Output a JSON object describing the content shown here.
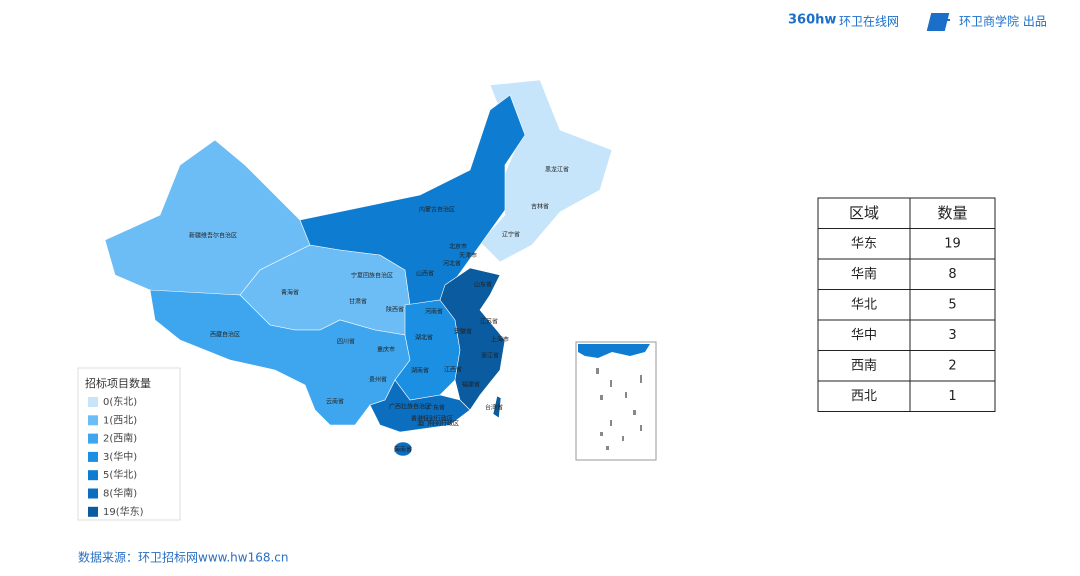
{
  "header": {
    "logo": "360hw",
    "site": "环卫在线网",
    "producer": "环卫商学院 出品"
  },
  "map": {
    "legend": {
      "title": "招标项目数量",
      "items": [
        {
          "label": "0(东北)",
          "color": "#c6e5fa"
        },
        {
          "label": "1(西北)",
          "color": "#6cbdf5"
        },
        {
          "label": "2(西南)",
          "color": "#3ea6ee"
        },
        {
          "label": "3(华中)",
          "color": "#1b8fe2"
        },
        {
          "label": "5(华北)",
          "color": "#0e7dd1"
        },
        {
          "label": "8(华南)",
          "color": "#0b6ebf"
        },
        {
          "label": "19(华东)",
          "color": "#0a5b9f"
        }
      ]
    },
    "provinces": [
      "黑龙江省",
      "吉林省",
      "辽宁省",
      "内蒙古自治区",
      "新疆维吾尔自治区",
      "青海省",
      "西藏自治区",
      "甘肃省",
      "宁夏回族自治区",
      "陕西省",
      "山西省",
      "河北省",
      "北京市",
      "天津市",
      "山东省",
      "河南省",
      "江苏省",
      "安徽省",
      "上海市",
      "浙江省",
      "湖北省",
      "四川省",
      "重庆市",
      "湖南省",
      "江西省",
      "福建省",
      "贵州省",
      "云南省",
      "广西壮族自治区",
      "广东省",
      "台湾省",
      "海南省",
      "香港特别行政区",
      "澳门特别行政区"
    ]
  },
  "table": {
    "header": [
      "区域",
      "数量"
    ],
    "rows": [
      [
        "华东",
        "19"
      ],
      [
        "华南",
        "8"
      ],
      [
        "华北",
        "5"
      ],
      [
        "华中",
        "3"
      ],
      [
        "西南",
        "2"
      ],
      [
        "西北",
        "1"
      ]
    ]
  },
  "footer": "数据来源：环卫招标网www.hw168.cn"
}
